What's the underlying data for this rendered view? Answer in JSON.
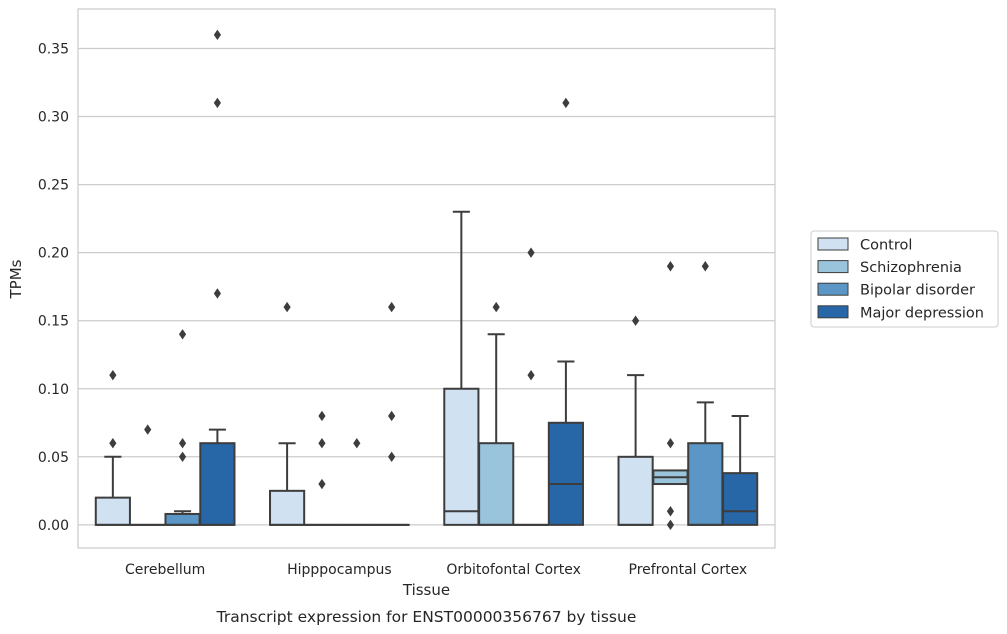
{
  "caption": "Transcript expression for ENST00000356767 by tissue",
  "chart_data": {
    "type": "box",
    "xlabel": "Tissue",
    "ylabel": "TPMs",
    "ylim": [
      -0.017,
      0.379
    ],
    "yticks": [
      "0.00",
      "0.05",
      "0.10",
      "0.15",
      "0.20",
      "0.25",
      "0.30",
      "0.35"
    ],
    "grid": "horizontal",
    "legend_placement": "right, outside plot",
    "categories": [
      "Cerebellum",
      "Hipppocampus",
      "Orbitofontal Cortex",
      "Prefrontal Cortex"
    ],
    "series": [
      {
        "name": "Control",
        "color": "#d0e1f2",
        "boxes": [
          {
            "q1": 0,
            "median": 0,
            "q3": 0.02,
            "whislo": 0,
            "whishi": 0.05,
            "fliers": [
              0.06,
              0.11
            ]
          },
          {
            "q1": 0,
            "median": 0,
            "q3": 0.025,
            "whislo": 0,
            "whishi": 0.06,
            "fliers": [
              0.16
            ]
          },
          {
            "q1": 0,
            "median": 0.01,
            "q3": 0.1,
            "whislo": 0,
            "whishi": 0.23,
            "fliers": []
          },
          {
            "q1": 0,
            "median": 0,
            "q3": 0.05,
            "whislo": 0,
            "whishi": 0.11,
            "fliers": [
              0.15
            ]
          }
        ]
      },
      {
        "name": "Schizophrenia",
        "color": "#9ac4dc",
        "boxes": [
          {
            "q1": 0,
            "median": 0,
            "q3": 0,
            "whislo": 0,
            "whishi": 0,
            "fliers": [
              0.07
            ]
          },
          {
            "q1": 0,
            "median": 0,
            "q3": 0,
            "whislo": 0,
            "whishi": 0,
            "fliers": [
              0.03,
              0.06,
              0.08
            ]
          },
          {
            "q1": 0,
            "median": 0,
            "q3": 0.06,
            "whislo": 0,
            "whishi": 0.14,
            "fliers": [
              0.16
            ]
          },
          {
            "q1": 0.03,
            "median": 0.035,
            "q3": 0.04,
            "whislo": 0.03,
            "whishi": 0.04,
            "fliers": [
              0,
              0.01,
              0.06,
              0.19
            ]
          }
        ]
      },
      {
        "name": "Bipolar disorder",
        "color": "#5b96c6",
        "boxes": [
          {
            "q1": 0,
            "median": 0,
            "q3": 0.008,
            "whislo": 0,
            "whishi": 0.01,
            "fliers": [
              0.05,
              0.06,
              0.14
            ]
          },
          {
            "q1": 0,
            "median": 0,
            "q3": 0,
            "whislo": 0,
            "whishi": 0,
            "fliers": [
              0.06
            ]
          },
          {
            "q1": 0,
            "median": 0,
            "q3": 0,
            "whislo": 0,
            "whishi": 0,
            "fliers": [
              0.11,
              0.2
            ]
          },
          {
            "q1": 0,
            "median": 0,
            "q3": 0.06,
            "whislo": 0,
            "whishi": 0.09,
            "fliers": [
              0.19
            ]
          }
        ]
      },
      {
        "name": "Major depression",
        "color": "#2767a8",
        "boxes": [
          {
            "q1": 0,
            "median": 0,
            "q3": 0.06,
            "whislo": 0,
            "whishi": 0.07,
            "fliers": [
              0.17,
              0.31,
              0.36
            ]
          },
          {
            "q1": 0,
            "median": 0,
            "q3": 0,
            "whislo": 0,
            "whishi": 0,
            "fliers": [
              0.05,
              0.08,
              0.16
            ]
          },
          {
            "q1": 0,
            "median": 0.03,
            "q3": 0.075,
            "whislo": 0,
            "whishi": 0.12,
            "fliers": [
              0.31
            ]
          },
          {
            "q1": 0,
            "median": 0.01,
            "q3": 0.038,
            "whislo": 0,
            "whishi": 0.08,
            "fliers": []
          }
        ]
      }
    ]
  }
}
